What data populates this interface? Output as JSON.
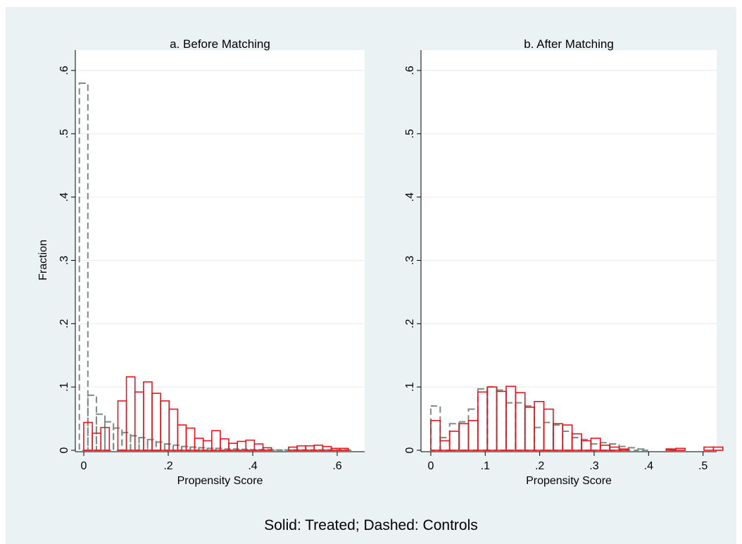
{
  "figure": {
    "note": "Solid: Treated; Dashed: Controls",
    "ylabel": "Fraction",
    "colors": {
      "background": "#eaf2f3",
      "plot_area": "#ffffff",
      "grid": "#e8eef0",
      "treated": "#e8141e",
      "controls": "#7b8c83"
    }
  },
  "chart_data": [
    {
      "type": "bar",
      "subtype": "overlaid-histogram",
      "title": "a. Before Matching",
      "xlabel": "Propensity Score",
      "ylabel": "Fraction",
      "xlim": [
        -0.02,
        0.665
      ],
      "ylim": [
        0,
        0.6
      ],
      "xticks": [
        0,
        0.2,
        0.4,
        0.6
      ],
      "xtick_labels": [
        "0",
        ".2",
        ".4",
        ".6"
      ],
      "yticks": [
        0,
        0.1,
        0.2,
        0.3,
        0.4,
        0.5,
        0.6
      ],
      "ytick_labels": [
        "0",
        ".1",
        ".2",
        ".3",
        ".4",
        ".5",
        ".6"
      ],
      "grid": true,
      "bin_width": 0.0202,
      "series": [
        {
          "name": "Treated",
          "style": "solid",
          "bin_start": 0.0,
          "values": [
            0.044,
            0.027,
            0.036,
            0.0,
            0.078,
            0.116,
            0.092,
            0.108,
            0.09,
            0.078,
            0.065,
            0.04,
            0.035,
            0.019,
            0.015,
            0.031,
            0.018,
            0.011,
            0.014,
            0.016,
            0.01,
            0.004,
            0.0,
            0.0,
            0.005,
            0.007,
            0.007,
            0.008,
            0.006,
            0.003,
            0.003
          ]
        },
        {
          "name": "Controls",
          "style": "dashed",
          "bin_start": -0.0105,
          "values": [
            0.58,
            0.087,
            0.057,
            0.045,
            0.035,
            0.028,
            0.023,
            0.02,
            0.017,
            0.013,
            0.01,
            0.008,
            0.006,
            0.005,
            0.004,
            0.003,
            0.003,
            0.002,
            0.002,
            0.0015,
            0.001,
            0.001,
            0.001,
            0.0005,
            0.0005,
            0.0005,
            0.0005,
            0.0005,
            0.0005,
            0.0005,
            0.0005,
            0.0005,
            0.0
          ]
        }
      ]
    },
    {
      "type": "bar",
      "subtype": "overlaid-histogram",
      "title": "b. After Matching",
      "xlabel": "Propensity Score",
      "ylabel": "",
      "xlim": [
        -0.018,
        0.525
      ],
      "ylim": [
        0,
        0.6
      ],
      "xticks": [
        0,
        0.1,
        0.2,
        0.3,
        0.4,
        0.5
      ],
      "xtick_labels": [
        "0",
        ".1",
        ".2",
        ".3",
        ".4",
        ".5"
      ],
      "yticks": [
        0,
        0.1,
        0.2,
        0.3,
        0.4,
        0.5,
        0.6
      ],
      "ytick_labels": [
        "0",
        ".1",
        ".2",
        ".3",
        ".4",
        ".5",
        ".6"
      ],
      "grid": true,
      "bin_width": 0.0173,
      "series": [
        {
          "name": "Treated",
          "style": "solid",
          "bin_start": 0.0,
          "values": [
            0.047,
            0.015,
            0.03,
            0.042,
            0.047,
            0.092,
            0.1,
            0.093,
            0.101,
            0.091,
            0.068,
            0.077,
            0.065,
            0.042,
            0.04,
            0.026,
            0.015,
            0.019,
            0.008,
            0.005,
            0.002,
            0.0,
            0.0,
            0.0,
            0.0,
            0.002,
            0.003,
            0.0,
            0.0,
            0.005,
            0.005
          ]
        },
        {
          "name": "Controls",
          "style": "dashed",
          "bin_start": 0.0,
          "values": [
            0.07,
            0.02,
            0.042,
            0.045,
            0.065,
            0.097,
            0.1,
            0.095,
            0.075,
            0.075,
            0.07,
            0.036,
            0.044,
            0.04,
            0.03,
            0.02,
            0.017,
            0.01,
            0.012,
            0.01,
            0.006,
            0.004,
            0.002,
            0.0,
            0.0,
            0.002,
            0.0,
            0.0,
            0.0,
            0.0,
            0.0
          ]
        }
      ]
    }
  ]
}
